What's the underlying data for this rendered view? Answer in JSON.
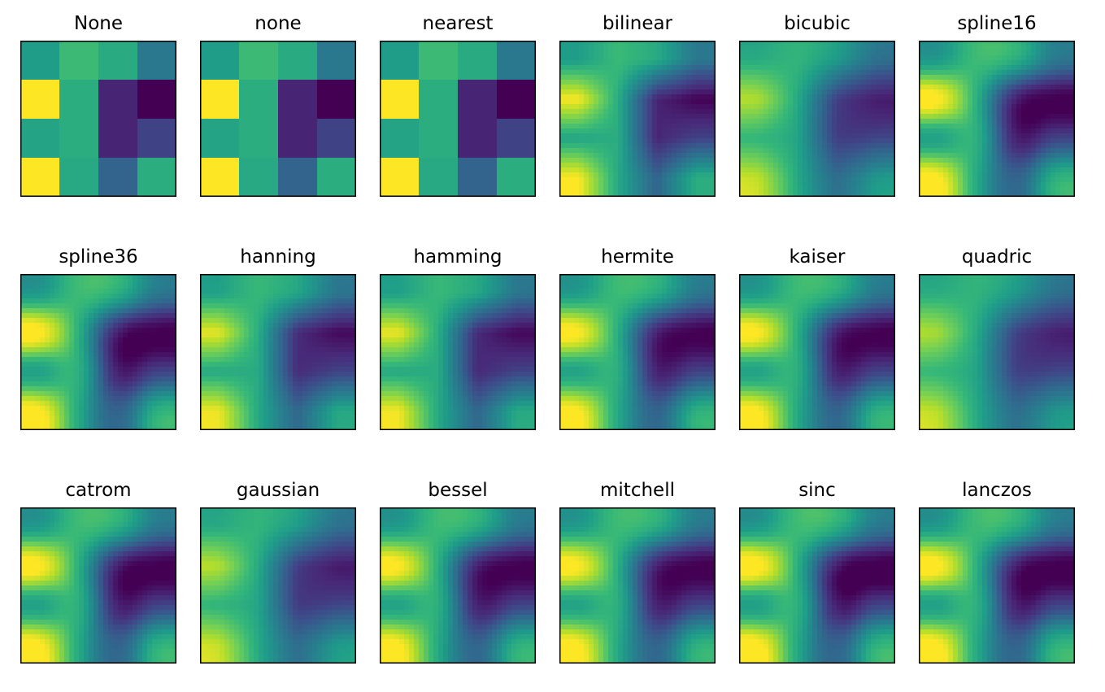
{
  "figure": {
    "grid": {
      "rows": 3,
      "cols": 6
    }
  },
  "chart_data": {
    "type": "heatmap",
    "colormap": "viridis",
    "colormap_stops": [
      "#440154",
      "#482878",
      "#3e4989",
      "#31688e",
      "#26828e",
      "#1f9e89",
      "#35b779",
      "#6ece58",
      "#b5de2b",
      "#fde725"
    ],
    "matrix": [
      [
        0.55,
        0.68,
        0.61,
        0.4
      ],
      [
        1.0,
        0.62,
        0.1,
        0.0
      ],
      [
        0.58,
        0.62,
        0.1,
        0.2
      ],
      [
        1.0,
        0.6,
        0.32,
        0.62
      ]
    ],
    "xticks": [],
    "yticks": [],
    "panels": [
      {
        "title": "None",
        "interpolation": "none"
      },
      {
        "title": "none",
        "interpolation": "none"
      },
      {
        "title": "nearest",
        "interpolation": "nearest"
      },
      {
        "title": "bilinear",
        "interpolation": "bilinear"
      },
      {
        "title": "bicubic",
        "interpolation": "bicubic"
      },
      {
        "title": "spline16",
        "interpolation": "spline16"
      },
      {
        "title": "spline36",
        "interpolation": "spline36"
      },
      {
        "title": "hanning",
        "interpolation": "hanning"
      },
      {
        "title": "hamming",
        "interpolation": "hamming"
      },
      {
        "title": "hermite",
        "interpolation": "hermite"
      },
      {
        "title": "kaiser",
        "interpolation": "kaiser"
      },
      {
        "title": "quadric",
        "interpolation": "quadric"
      },
      {
        "title": "catrom",
        "interpolation": "catrom"
      },
      {
        "title": "gaussian",
        "interpolation": "gaussian"
      },
      {
        "title": "bessel",
        "interpolation": "bessel"
      },
      {
        "title": "mitchell",
        "interpolation": "mitchell"
      },
      {
        "title": "sinc",
        "interpolation": "sinc"
      },
      {
        "title": "lanczos",
        "interpolation": "lanczos"
      }
    ]
  }
}
